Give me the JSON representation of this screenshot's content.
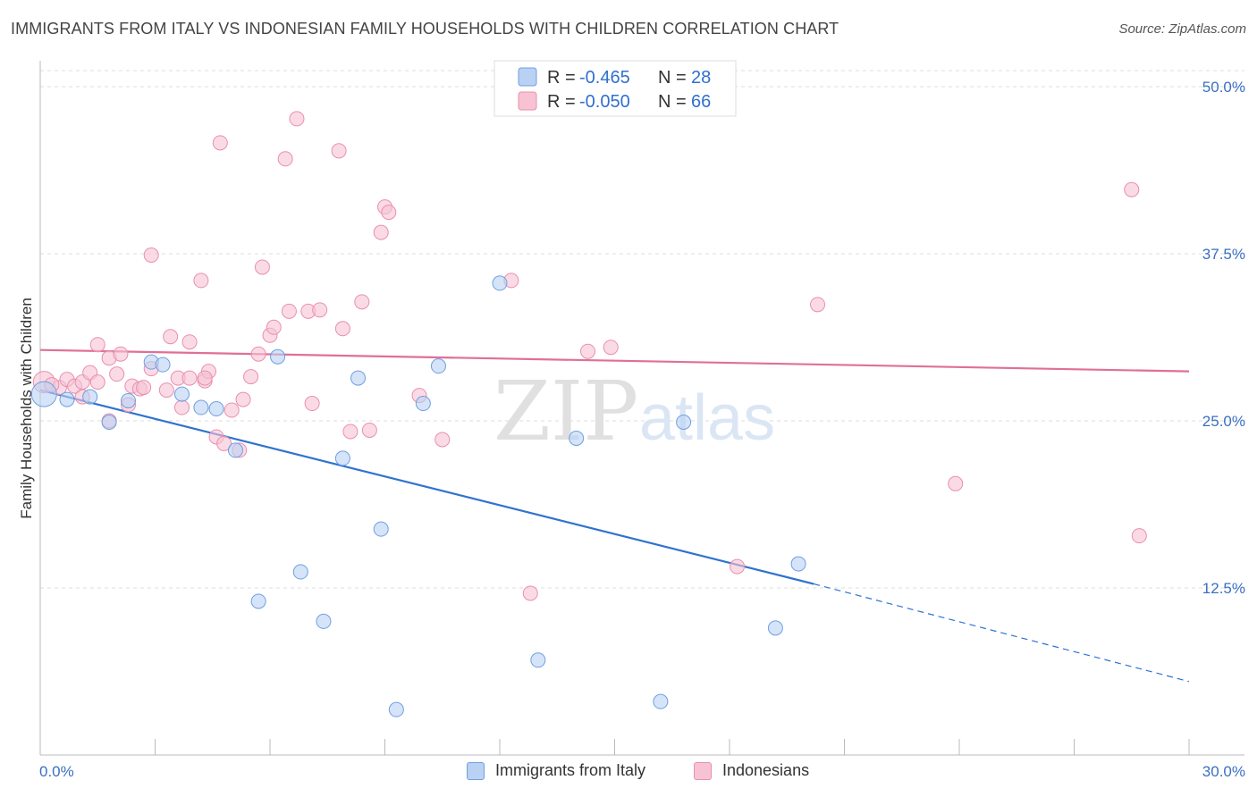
{
  "title": "IMMIGRANTS FROM ITALY VS INDONESIAN FAMILY HOUSEHOLDS WITH CHILDREN CORRELATION CHART",
  "source": "Source: ZipAtlas.com",
  "watermark": {
    "zip": "ZIP",
    "atlas": "atlas"
  },
  "colors": {
    "blue_fill": "#b9d2f3",
    "blue_stroke": "#6f9fe0",
    "blue_line": "#2f73d0",
    "pink_fill": "#f7c3d3",
    "pink_stroke": "#e98fae",
    "pink_line": "#e06f98",
    "tick_text": "#3a6fc4",
    "grid": "#dddddd"
  },
  "legend": {
    "rows": [
      {
        "r_label": "R =",
        "r_value": "-0.465",
        "n_label": "N =",
        "n_value": "28"
      },
      {
        "r_label": "R =",
        "r_value": "-0.050",
        "n_label": "N =",
        "n_value": "66"
      }
    ]
  },
  "bottom_legend": [
    "Immigrants from Italy",
    "Indonesians"
  ],
  "chart_data": {
    "type": "scatter",
    "title": "IMMIGRANTS FROM ITALY VS INDONESIAN FAMILY HOUSEHOLDS WITH CHILDREN CORRELATION CHART",
    "xlabel": "",
    "ylabel": "Family Households with Children",
    "xlim": [
      0,
      30
    ],
    "ylim": [
      0,
      50
    ],
    "x_tick_labels": [
      "0.0%",
      "30.0%"
    ],
    "y_tick_labels": [
      "12.5%",
      "25.0%",
      "37.5%",
      "50.0%"
    ],
    "y_ticks": [
      12.5,
      25.0,
      37.5,
      50.0
    ],
    "grid": true,
    "legend_position": "top-center",
    "series": [
      {
        "name": "Immigrants from Italy",
        "color": "blue",
        "trend": {
          "x0": 0,
          "y0": 27.3,
          "x1": 20.2,
          "y1": 12.8,
          "dashed_to_x": 30,
          "dashed_to_y": 5.5
        },
        "points": [
          [
            0.1,
            27.0,
            14
          ],
          [
            0.7,
            26.6,
            8
          ],
          [
            1.3,
            26.8,
            8
          ],
          [
            1.8,
            24.9,
            8
          ],
          [
            2.3,
            26.5,
            8
          ],
          [
            2.9,
            29.4,
            8
          ],
          [
            3.2,
            29.2,
            8
          ],
          [
            3.7,
            27.0,
            8
          ],
          [
            4.2,
            26.0,
            8
          ],
          [
            4.6,
            25.9,
            8
          ],
          [
            5.1,
            22.8,
            8
          ],
          [
            6.2,
            29.8,
            8
          ],
          [
            5.7,
            11.5,
            8
          ],
          [
            6.8,
            13.7,
            8
          ],
          [
            7.4,
            10.0,
            8
          ],
          [
            7.9,
            22.2,
            8
          ],
          [
            8.3,
            28.2,
            8
          ],
          [
            8.9,
            16.9,
            8
          ],
          [
            9.3,
            3.4,
            8
          ],
          [
            10.0,
            26.3,
            8
          ],
          [
            10.4,
            29.1,
            8
          ],
          [
            12.0,
            35.3,
            8
          ],
          [
            13.0,
            7.1,
            8
          ],
          [
            14.0,
            23.7,
            8
          ],
          [
            16.2,
            4.0,
            8
          ],
          [
            16.8,
            24.9,
            8
          ],
          [
            19.2,
            9.5,
            8
          ],
          [
            19.8,
            14.3,
            8
          ]
        ]
      },
      {
        "name": "Indonesians",
        "color": "pink",
        "trend": {
          "x0": 0,
          "y0": 30.3,
          "x1": 30,
          "y1": 28.7
        },
        "points": [
          [
            0.1,
            27.9,
            12
          ],
          [
            0.5,
            27.5,
            8
          ],
          [
            0.7,
            28.1,
            8
          ],
          [
            0.9,
            27.6,
            8
          ],
          [
            1.1,
            27.9,
            8
          ],
          [
            1.1,
            26.8,
            8
          ],
          [
            1.3,
            28.6,
            8
          ],
          [
            1.5,
            27.9,
            8
          ],
          [
            1.5,
            30.7,
            8
          ],
          [
            1.8,
            25.0,
            8
          ],
          [
            1.8,
            29.7,
            8
          ],
          [
            2.0,
            28.5,
            8
          ],
          [
            2.1,
            30.0,
            8
          ],
          [
            2.3,
            26.2,
            8
          ],
          [
            2.4,
            27.6,
            8
          ],
          [
            2.6,
            27.4,
            8
          ],
          [
            2.7,
            27.5,
            8
          ],
          [
            2.9,
            28.9,
            8
          ],
          [
            2.9,
            37.4,
            8
          ],
          [
            3.3,
            27.3,
            8
          ],
          [
            3.4,
            31.3,
            8
          ],
          [
            3.6,
            28.2,
            8
          ],
          [
            3.7,
            26.0,
            8
          ],
          [
            3.9,
            28.2,
            8
          ],
          [
            3.9,
            30.9,
            8
          ],
          [
            4.2,
            35.5,
            8
          ],
          [
            4.3,
            28.0,
            8
          ],
          [
            4.4,
            28.7,
            8
          ],
          [
            4.6,
            23.8,
            8
          ],
          [
            4.7,
            45.8,
            8
          ],
          [
            4.8,
            23.3,
            8
          ],
          [
            5.0,
            25.8,
            8
          ],
          [
            5.2,
            22.8,
            8
          ],
          [
            5.3,
            26.6,
            8
          ],
          [
            5.5,
            28.3,
            8
          ],
          [
            5.7,
            30.0,
            8
          ],
          [
            5.8,
            36.5,
            8
          ],
          [
            6.0,
            31.4,
            8
          ],
          [
            6.1,
            32.0,
            8
          ],
          [
            6.4,
            44.6,
            8
          ],
          [
            6.5,
            33.2,
            8
          ],
          [
            6.7,
            47.6,
            8
          ],
          [
            7.0,
            33.2,
            8
          ],
          [
            7.1,
            26.3,
            8
          ],
          [
            7.3,
            33.3,
            8
          ],
          [
            7.8,
            45.2,
            8
          ],
          [
            7.9,
            31.9,
            8
          ],
          [
            8.1,
            24.2,
            8
          ],
          [
            8.4,
            33.9,
            8
          ],
          [
            8.6,
            24.3,
            8
          ],
          [
            8.9,
            39.1,
            8
          ],
          [
            9.0,
            41.0,
            8
          ],
          [
            9.1,
            40.6,
            8
          ],
          [
            9.9,
            26.9,
            8
          ],
          [
            10.5,
            23.6,
            8
          ],
          [
            12.3,
            35.5,
            8
          ],
          [
            12.8,
            12.1,
            8
          ],
          [
            14.3,
            30.2,
            8
          ],
          [
            14.9,
            30.5,
            8
          ],
          [
            18.2,
            14.1,
            8
          ],
          [
            20.3,
            33.7,
            8
          ],
          [
            23.9,
            20.3,
            8
          ],
          [
            28.5,
            42.3,
            8
          ],
          [
            28.7,
            16.4,
            8
          ],
          [
            0.3,
            27.7,
            8
          ],
          [
            4.3,
            28.2,
            8
          ]
        ]
      }
    ]
  }
}
